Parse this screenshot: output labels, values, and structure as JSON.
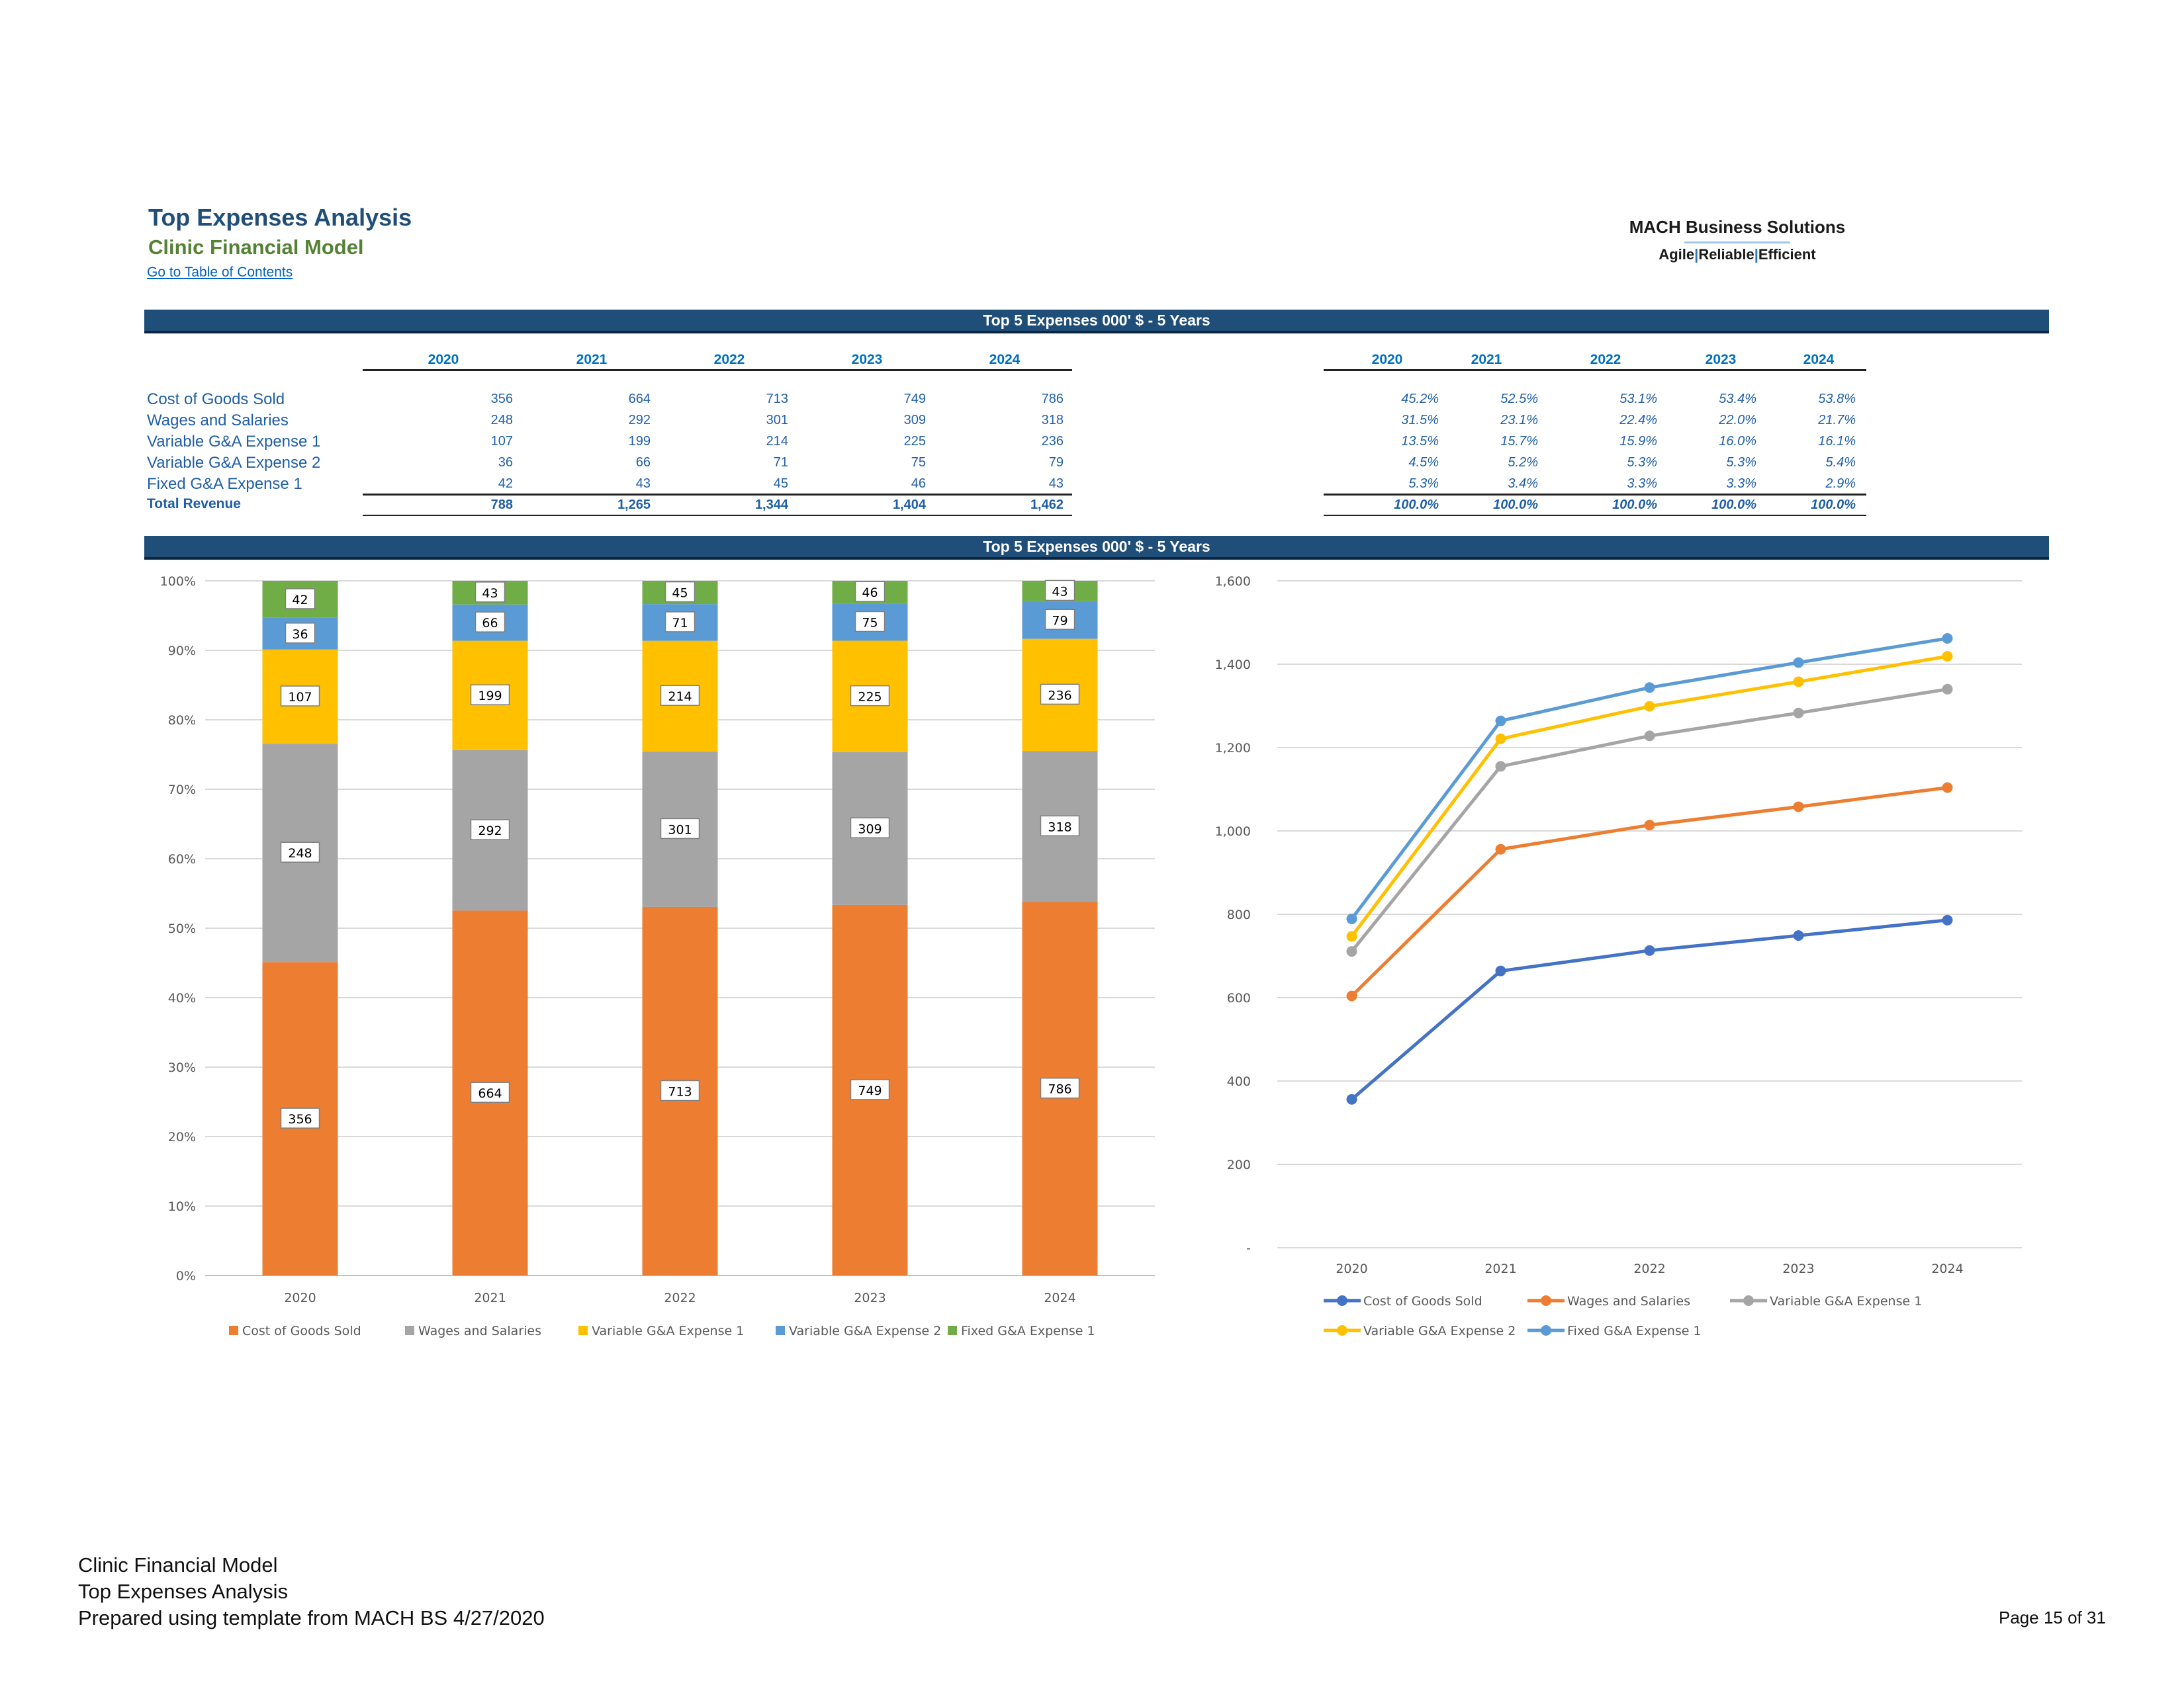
{
  "header": {
    "title": "Top Expenses Analysis",
    "subtitle": "Clinic Financial Model",
    "toc_link": "Go to Table of Contents"
  },
  "logo": {
    "name": "MACH Business Solutions",
    "tag_1": "Agile",
    "tag_2": "Reliable",
    "tag_3": "Efficient",
    "tag_sep": "|"
  },
  "banner_table": "Top 5 Expenses 000' $ - 5 Years",
  "banner_charts": "Top 5 Expenses 000' $ - 5 Years",
  "table": {
    "years": [
      "2020",
      "2021",
      "2022",
      "2023",
      "2024"
    ],
    "rows": [
      {
        "label": "Cost of Goods Sold",
        "values": [
          "356",
          "664",
          "713",
          "749",
          "786"
        ],
        "pct": [
          "45.2%",
          "52.5%",
          "53.1%",
          "53.4%",
          "53.8%"
        ]
      },
      {
        "label": "Wages and Salaries",
        "values": [
          "248",
          "292",
          "301",
          "309",
          "318"
        ],
        "pct": [
          "31.5%",
          "23.1%",
          "22.4%",
          "22.0%",
          "21.7%"
        ]
      },
      {
        "label": "Variable G&A Expense 1",
        "values": [
          "107",
          "199",
          "214",
          "225",
          "236"
        ],
        "pct": [
          "13.5%",
          "15.7%",
          "15.9%",
          "16.0%",
          "16.1%"
        ]
      },
      {
        "label": "Variable G&A Expense 2",
        "values": [
          "36",
          "66",
          "71",
          "75",
          "79"
        ],
        "pct": [
          "4.5%",
          "5.2%",
          "5.3%",
          "5.3%",
          "5.4%"
        ]
      },
      {
        "label": "Fixed G&A Expense 1",
        "values": [
          "42",
          "43",
          "45",
          "46",
          "43"
        ],
        "pct": [
          "5.3%",
          "3.4%",
          "3.3%",
          "3.3%",
          "2.9%"
        ]
      }
    ],
    "total": {
      "label": "Total Revenue",
      "values": [
        "788",
        "1,265",
        "1,344",
        "1,404",
        "1,462"
      ],
      "pct": [
        "100.0%",
        "100.0%",
        "100.0%",
        "100.0%",
        "100.0%"
      ]
    }
  },
  "colors": {
    "cogs": "#ed7d31",
    "wages": "#a5a5a5",
    "vga1": "#ffc000",
    "vga2": "#5b9bd5",
    "fga1": "#70ad47",
    "line_cogs": "#4472c4",
    "line_wages": "#ed7d31",
    "line_vga1": "#a5a5a5",
    "line_vga2": "#ffc000",
    "line_fga1": "#5b9bd5"
  },
  "chart_data": [
    {
      "type": "bar",
      "stacked": "percent",
      "categories": [
        "2020",
        "2021",
        "2022",
        "2023",
        "2024"
      ],
      "series": [
        {
          "name": "Cost of Goods Sold",
          "values": [
            356,
            664,
            713,
            749,
            786
          ]
        },
        {
          "name": "Wages and Salaries",
          "values": [
            248,
            292,
            301,
            309,
            318
          ]
        },
        {
          "name": "Variable G&A Expense 1",
          "values": [
            107,
            199,
            214,
            225,
            236
          ]
        },
        {
          "name": "Variable G&A Expense 2",
          "values": [
            36,
            66,
            71,
            75,
            79
          ]
        },
        {
          "name": "Fixed G&A Expense 1",
          "values": [
            42,
            43,
            45,
            46,
            43
          ]
        }
      ],
      "yticks": [
        "0%",
        "10%",
        "20%",
        "30%",
        "40%",
        "50%",
        "60%",
        "70%",
        "80%",
        "90%",
        "100%"
      ],
      "ylim": [
        0,
        100
      ],
      "grid": true,
      "legend": "bottom"
    },
    {
      "type": "line",
      "stacked": true,
      "categories": [
        "2020",
        "2021",
        "2022",
        "2023",
        "2024"
      ],
      "series": [
        {
          "name": "Cost of Goods Sold",
          "values": [
            356,
            664,
            713,
            749,
            786
          ]
        },
        {
          "name": "Wages and Salaries",
          "values": [
            604,
            956,
            1014,
            1058,
            1104
          ]
        },
        {
          "name": "Variable G&A Expense 1",
          "values": [
            711,
            1155,
            1228,
            1283,
            1340
          ]
        },
        {
          "name": "Variable G&A Expense 2",
          "values": [
            747,
            1221,
            1299,
            1358,
            1419
          ]
        },
        {
          "name": "Fixed G&A Expense 1",
          "values": [
            789,
            1264,
            1344,
            1404,
            1462
          ]
        }
      ],
      "yticks": [
        "-",
        "200",
        "400",
        "600",
        "800",
        "1,000",
        "1,200",
        "1,400",
        "1,600"
      ],
      "ylim": [
        0,
        1600
      ],
      "grid": true,
      "legend": "bottom"
    }
  ],
  "footer": {
    "line1": "Clinic Financial Model",
    "line2": "Top Expenses Analysis",
    "line3": "Prepared using template from MACH BS 4/27/2020",
    "page": "Page 15 of 31"
  }
}
